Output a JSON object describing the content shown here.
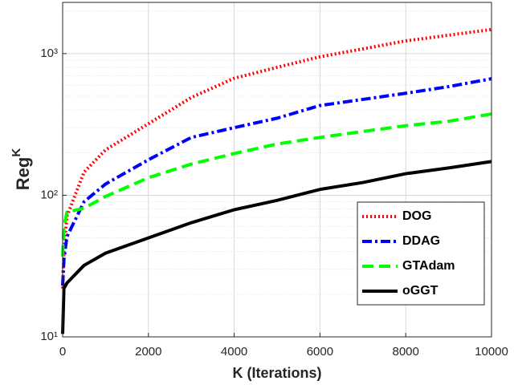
{
  "chart_data": {
    "type": "line",
    "x_label": "K (Iterations)",
    "y_label": {
      "text": "Reg",
      "superscript": "K"
    },
    "x": [
      0,
      30,
      100,
      500,
      1000,
      2000,
      3000,
      4000,
      5000,
      6000,
      7000,
      8000,
      9000,
      10000
    ],
    "series": [
      {
        "name": "DOG",
        "color": "#ff0000",
        "dash": "dotted",
        "values": [
          22,
          40,
          71,
          146,
          209,
          320,
          490,
          670,
          800,
          950,
          1080,
          1230,
          1350,
          1480
        ]
      },
      {
        "name": "DDAG",
        "color": "#0000ff",
        "dash": "dash-dot",
        "values": [
          23,
          35,
          51,
          90,
          120,
          178,
          256,
          300,
          350,
          430,
          475,
          525,
          585,
          665
        ]
      },
      {
        "name": "GTAdam",
        "color": "#00ff00",
        "dash": "dashed",
        "values": [
          37,
          60,
          76,
          81,
          98,
          133,
          166,
          197,
          230,
          256,
          282,
          310,
          333,
          375
        ]
      },
      {
        "name": "oGGT",
        "color": "#000000",
        "dash": "solid",
        "values": [
          10.5,
          22,
          24,
          32,
          39,
          50,
          64,
          79,
          92,
          110,
          123,
          142,
          156,
          173
        ]
      }
    ],
    "xlim": [
      0,
      10000
    ],
    "xticks": [
      0,
      2000,
      4000,
      6000,
      8000,
      10000
    ],
    "ylim": [
      10,
      2300
    ],
    "yticks": [
      {
        "value": 10,
        "label": "10¹"
      },
      {
        "value": 100,
        "label": "10²"
      },
      {
        "value": 1000,
        "label": "10³"
      }
    ],
    "log_y": true,
    "grid": true,
    "minor_grid": true,
    "legend": "lower right"
  }
}
